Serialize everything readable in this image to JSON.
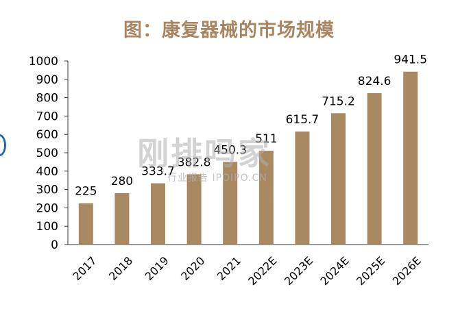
{
  "title": "图：康复器械的市场规模",
  "watermark": {
    "main": "刚排吗家",
    "sub": "行业报告 IPOIPO.CN"
  },
  "caption": "",
  "colors": {
    "bar": "#a98962",
    "title": "#a88560"
  },
  "chart_data": {
    "type": "bar",
    "title": "图：康复器械的市场规模",
    "categories": [
      "2017",
      "2018",
      "2019",
      "2020",
      "2021",
      "2022E",
      "2023E",
      "2024E",
      "2025E",
      "2026E"
    ],
    "values": [
      225,
      280,
      333.7,
      382.8,
      450.3,
      511,
      615.7,
      715.2,
      824.6,
      941.5
    ],
    "data_labels": [
      "225",
      "280",
      "333.7",
      "382.8",
      "450.3",
      "511",
      "615.7",
      "715.2",
      "824.6",
      "941.5"
    ],
    "xlabel": "",
    "ylabel": "",
    "ylim": [
      0,
      1000
    ],
    "yticks": [
      "0",
      "100",
      "200",
      "300",
      "400",
      "500",
      "600",
      "700",
      "800",
      "900",
      "1000"
    ],
    "grid": false,
    "legend": "none"
  }
}
